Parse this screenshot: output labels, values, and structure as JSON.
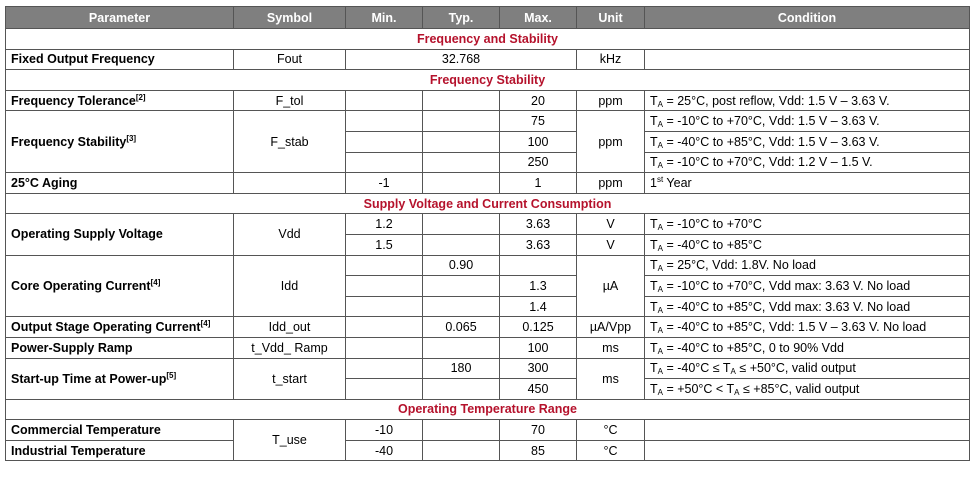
{
  "headers": {
    "parameter": "Parameter",
    "symbol": "Symbol",
    "min": "Min.",
    "typ": "Typ.",
    "max": "Max.",
    "unit": "Unit",
    "condition": "Condition"
  },
  "sections": {
    "freq_and_stability": "Frequency and Stability",
    "freq_stability": "Frequency Stability",
    "supply": "Supply Voltage and Current Consumption",
    "temp_range": "Operating Temperature Range"
  },
  "rows": {
    "fout": {
      "parameter": "Fixed Output Frequency",
      "symbol": "Fout",
      "typ": "32.768",
      "unit": "kHz"
    },
    "f_tol": {
      "parameter": "Frequency Tolerance",
      "note": "[2]",
      "symbol": "F_tol",
      "max": "20",
      "unit": "ppm",
      "cond_pre": "T",
      "cond_sub": "A",
      "cond_text": " = 25°C, post reflow, Vdd: 1.5 V – 3.63 V."
    },
    "f_stab": {
      "parameter": "Frequency Stability",
      "note": "[3]",
      "symbol": "F_stab",
      "unit": "ppm",
      "max1": "75",
      "max2": "100",
      "max3": "250",
      "cond1": " = -10°C to +70°C, Vdd: 1.5 V – 3.63 V.",
      "cond2": " = -40°C to +85°C, Vdd: 1.5 V – 3.63 V.",
      "cond3": " = -10°C to +70°C, Vdd: 1.2 V – 1.5 V.",
      "cond_pre": "T",
      "cond_sub": "A"
    },
    "aging": {
      "parameter": "25°C Aging",
      "min": "-1",
      "max": "1",
      "unit": "ppm",
      "cond_num": "1",
      "cond_sup": "st",
      "cond_text": " Year"
    },
    "vdd": {
      "parameter": "Operating Supply Voltage",
      "symbol": "Vdd",
      "min1": "1.2",
      "max1": "3.63",
      "unit1": "V",
      "cond1": " = -10°C to +70°C",
      "min2": "1.5",
      "max2": "3.63",
      "unit2": "V",
      "cond2": " = -40°C to +85°C",
      "cond_pre": "T",
      "cond_sub": "A"
    },
    "idd": {
      "parameter": "Core Operating Current",
      "note": "[4]",
      "symbol": "Idd",
      "unit": "µA",
      "typ1": "0.90",
      "cond1": " = 25°C, Vdd: 1.8V. No load",
      "max2": "1.3",
      "cond2": " = -10°C to +70°C, Vdd max: 3.63 V. No load",
      "max3": "1.4",
      "cond3": " = -40°C to +85°C, Vdd max: 3.63 V. No load",
      "cond_pre": "T",
      "cond_sub": "A"
    },
    "idd_out": {
      "parameter": "Output Stage Operating Current",
      "note": "[4]",
      "symbol": "Idd_out",
      "typ": "0.065",
      "max": "0.125",
      "unit": "µA/Vpp",
      "cond_pre": "T",
      "cond_sub": "A",
      "cond_text": " = -40°C to +85°C, Vdd: 1.5 V – 3.63 V. No load"
    },
    "ramp": {
      "parameter": "Power-Supply Ramp",
      "symbol": "t_Vdd_ Ramp",
      "max": "100",
      "unit": "ms",
      "cond_pre": "T",
      "cond_sub": "A",
      "cond_text": " = -40°C to +85°C, 0 to 90% Vdd"
    },
    "startup": {
      "parameter": "Start-up Time at Power-up",
      "note": "[5]",
      "symbol": "t_start",
      "unit": "ms",
      "typ1": "180",
      "max1": "300",
      "cond1_a": " = -40°C ≤ T",
      "cond1_b": " ≤ +50°C, valid output",
      "max2": "450",
      "cond2_a": " = +50°C < T",
      "cond2_b": " ≤ +85°C, valid output",
      "cond_pre": "T",
      "cond_sub": "A"
    },
    "temp": {
      "symbol": "T_use",
      "commercial": "Commercial Temperature",
      "comm_min": "-10",
      "comm_max": "70",
      "comm_unit": "°C",
      "industrial": "Industrial Temperature",
      "ind_min": "-40",
      "ind_max": "85",
      "ind_unit": "°C"
    }
  }
}
